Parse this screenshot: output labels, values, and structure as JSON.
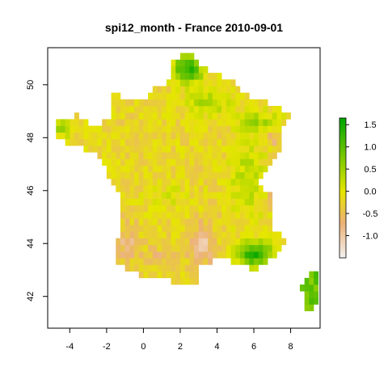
{
  "chart_data": {
    "type": "heatmap",
    "title": "spi12_month - France 2010-09-01",
    "xlabel": "",
    "ylabel": "",
    "xlim": [
      -5.2,
      9.6
    ],
    "ylim": [
      40.8,
      51.4
    ],
    "x_ticks": [
      -4,
      -2,
      0,
      2,
      4,
      6,
      8
    ],
    "y_ticks": [
      42,
      44,
      46,
      48,
      50
    ],
    "x_tick_labels": [
      "-4",
      "-2",
      "0",
      "2",
      "4",
      "6",
      "8"
    ],
    "y_tick_labels": [
      "42",
      "44",
      "46",
      "48",
      "50"
    ],
    "grid": false,
    "legend": {
      "placement": "right",
      "min": -1.5,
      "max": 1.65,
      "ticks": [
        -1.0,
        -0.5,
        0.0,
        0.5,
        1.0,
        1.5
      ],
      "tick_labels": [
        "-1.0",
        "-0.5",
        "0.0",
        "0.5",
        "1.0",
        "1.5"
      ]
    },
    "colors": {
      "low": "#f2f2f2",
      "lowmid": "#ecb176",
      "mid": "#e6e600",
      "high": "#00a600"
    },
    "cell_size_deg": 0.25,
    "region": "France",
    "date": "2010-09-01",
    "variable": "spi12_month"
  }
}
